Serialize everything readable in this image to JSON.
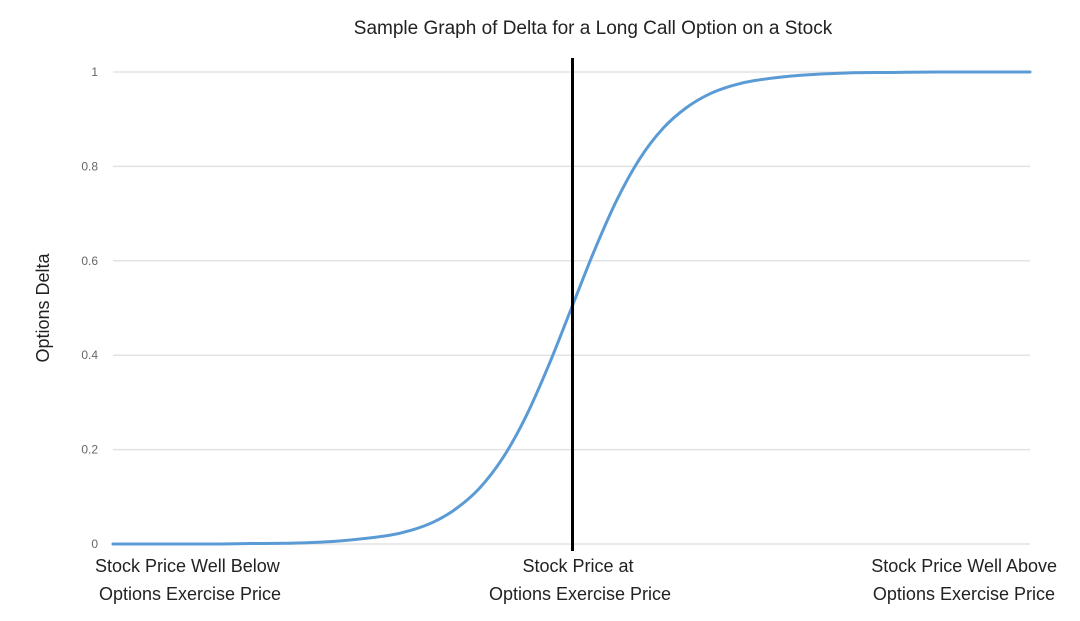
{
  "chart_data": {
    "type": "line",
    "title": "Sample Graph of Delta for a Long Call Option on a Stock",
    "xlabel": "",
    "ylabel": "Options Delta",
    "ylim": [
      0,
      1
    ],
    "xlim": [
      -10,
      10
    ],
    "grid": true,
    "y_ticks": [
      "0",
      "0.2",
      "0.4",
      "0.6",
      "0.8",
      "1"
    ],
    "y_tick_values": [
      0,
      0.2,
      0.4,
      0.6,
      0.8,
      1
    ],
    "x_categories": [
      {
        "x": -10,
        "line1": "Stock Price Well Below",
        "line2": "Options Exercise Price"
      },
      {
        "x": 0,
        "line1": "Stock Price at",
        "line2": "Options Exercise Price"
      },
      {
        "x": 10,
        "line1": "Stock Price Well Above",
        "line2": "Options Exercise Price"
      }
    ],
    "series": [
      {
        "name": "Delta",
        "color": "#5b9bd5",
        "x": [
          -10,
          -8,
          -7,
          -6,
          -5,
          -4,
          -3.5,
          -3,
          -2.5,
          -2,
          -1.5,
          -1,
          -0.5,
          0,
          0.5,
          1,
          1.5,
          2,
          2.5,
          3,
          3.5,
          4,
          5,
          6,
          7,
          8,
          10
        ],
        "y": [
          0.0,
          0.0,
          0.001,
          0.002,
          0.007,
          0.018,
          0.029,
          0.047,
          0.076,
          0.119,
          0.182,
          0.269,
          0.378,
          0.5,
          0.622,
          0.731,
          0.818,
          0.881,
          0.924,
          0.953,
          0.971,
          0.982,
          0.993,
          0.998,
          0.999,
          1.0,
          1.0
        ]
      }
    ],
    "reference_line": {
      "x": 0,
      "color": "#000000",
      "label": "Stock Price at Options Exercise Price"
    }
  }
}
